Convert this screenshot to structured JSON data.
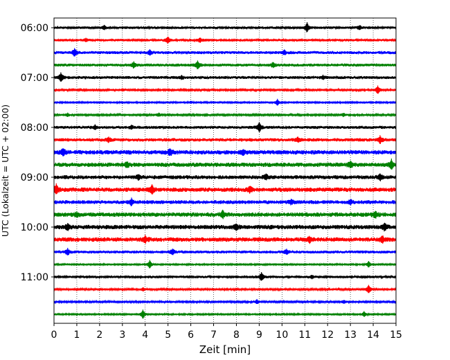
{
  "chart_data": {
    "type": "line",
    "xlabel": "Zeit  [min]",
    "ylabel": "UTC (Lokalzeit = UTC + 02:00)",
    "xlim": [
      0,
      15
    ],
    "x_ticks": [
      "0",
      "1",
      "2",
      "3",
      "4",
      "5",
      "6",
      "7",
      "8",
      "9",
      "10",
      "11",
      "12",
      "13",
      "14",
      "15"
    ],
    "y_tick_labels": [
      "06:00",
      "07:00",
      "08:00",
      "09:00",
      "10:00",
      "11:00"
    ],
    "grid": "vertical-dotted",
    "trace_colors": [
      "#000000",
      "#ff0000",
      "#0000ff",
      "#008000"
    ],
    "traces": [
      {
        "start": "06:00",
        "color": "#000000",
        "amplitude": 0.25,
        "events": [
          [
            2.2,
            0.4
          ],
          [
            11.1,
            0.9
          ],
          [
            13.4,
            0.4
          ]
        ]
      },
      {
        "start": "06:15",
        "color": "#ff0000",
        "amplitude": 0.25,
        "events": [
          [
            5.0,
            0.6
          ],
          [
            6.4,
            0.4
          ],
          [
            1.4,
            0.3
          ]
        ]
      },
      {
        "start": "06:30",
        "color": "#0000ff",
        "amplitude": 0.3,
        "events": [
          [
            0.9,
            0.7
          ],
          [
            4.2,
            0.4
          ],
          [
            10.1,
            0.4
          ]
        ]
      },
      {
        "start": "06:45",
        "color": "#008000",
        "amplitude": 0.3,
        "events": [
          [
            3.5,
            0.6
          ],
          [
            6.3,
            0.8
          ],
          [
            9.6,
            0.4
          ]
        ]
      },
      {
        "start": "07:00",
        "color": "#000000",
        "amplitude": 0.3,
        "events": [
          [
            0.3,
            0.8
          ],
          [
            5.6,
            0.3
          ],
          [
            11.8,
            0.3
          ]
        ]
      },
      {
        "start": "07:15",
        "color": "#ff0000",
        "amplitude": 0.2,
        "events": [
          [
            14.2,
            0.8
          ],
          [
            3.0,
            0.2
          ]
        ]
      },
      {
        "start": "07:30",
        "color": "#0000ff",
        "amplitude": 0.15,
        "events": [
          [
            9.8,
            0.6
          ],
          [
            6.0,
            0.2
          ]
        ]
      },
      {
        "start": "07:45",
        "color": "#008000",
        "amplitude": 0.2,
        "events": [
          [
            0.6,
            0.3
          ],
          [
            4.6,
            0.3
          ],
          [
            12.7,
            0.3
          ]
        ]
      },
      {
        "start": "08:00",
        "color": "#000000",
        "amplitude": 0.3,
        "events": [
          [
            9.0,
            0.9
          ],
          [
            1.8,
            0.4
          ],
          [
            3.4,
            0.3
          ]
        ]
      },
      {
        "start": "08:15",
        "color": "#ff0000",
        "amplitude": 0.35,
        "events": [
          [
            14.3,
            0.7
          ],
          [
            2.4,
            0.4
          ],
          [
            10.7,
            0.4
          ]
        ]
      },
      {
        "start": "08:30",
        "color": "#0000ff",
        "amplitude": 0.45,
        "events": [
          [
            0.4,
            0.6
          ],
          [
            5.1,
            0.6
          ],
          [
            8.3,
            0.5
          ]
        ]
      },
      {
        "start": "08:45",
        "color": "#008000",
        "amplitude": 0.45,
        "events": [
          [
            14.8,
            0.9
          ],
          [
            13.0,
            0.5
          ],
          [
            3.2,
            0.4
          ]
        ]
      },
      {
        "start": "09:00",
        "color": "#000000",
        "amplitude": 0.4,
        "events": [
          [
            14.3,
            0.6
          ],
          [
            9.3,
            0.5
          ],
          [
            3.7,
            0.4
          ]
        ]
      },
      {
        "start": "09:15",
        "color": "#ff0000",
        "amplitude": 0.45,
        "events": [
          [
            0.1,
            0.9
          ],
          [
            4.3,
            0.7
          ],
          [
            8.6,
            0.5
          ]
        ]
      },
      {
        "start": "09:30",
        "color": "#0000ff",
        "amplitude": 0.4,
        "events": [
          [
            3.4,
            0.6
          ],
          [
            10.4,
            0.4
          ],
          [
            13.0,
            0.4
          ]
        ]
      },
      {
        "start": "09:45",
        "color": "#008000",
        "amplitude": 0.45,
        "events": [
          [
            7.4,
            0.6
          ],
          [
            14.1,
            0.6
          ],
          [
            1.0,
            0.4
          ]
        ]
      },
      {
        "start": "10:00",
        "color": "#000000",
        "amplitude": 0.45,
        "events": [
          [
            0.6,
            0.5
          ],
          [
            8.0,
            0.5
          ],
          [
            14.5,
            0.6
          ]
        ]
      },
      {
        "start": "10:15",
        "color": "#ff0000",
        "amplitude": 0.45,
        "events": [
          [
            4.0,
            0.6
          ],
          [
            11.2,
            0.6
          ],
          [
            14.4,
            0.6
          ]
        ]
      },
      {
        "start": "10:30",
        "color": "#0000ff",
        "amplitude": 0.3,
        "events": [
          [
            0.6,
            0.6
          ],
          [
            5.2,
            0.5
          ],
          [
            10.2,
            0.5
          ]
        ]
      },
      {
        "start": "10:45",
        "color": "#008000",
        "amplitude": 0.15,
        "events": [
          [
            4.2,
            0.8
          ],
          [
            13.8,
            0.6
          ]
        ]
      },
      {
        "start": "11:00",
        "color": "#000000",
        "amplitude": 0.25,
        "events": [
          [
            9.1,
            0.8
          ],
          [
            11.3,
            0.3
          ]
        ]
      },
      {
        "start": "11:15",
        "color": "#ff0000",
        "amplitude": 0.2,
        "events": [
          [
            13.8,
            0.8
          ],
          [
            3.9,
            0.3
          ]
        ]
      },
      {
        "start": "11:30",
        "color": "#0000ff",
        "amplitude": 0.2,
        "events": [
          [
            8.9,
            0.4
          ],
          [
            12.7,
            0.3
          ]
        ]
      },
      {
        "start": "11:45",
        "color": "#008000",
        "amplitude": 0.15,
        "events": [
          [
            3.9,
            0.9
          ],
          [
            13.6,
            0.5
          ]
        ]
      }
    ]
  }
}
